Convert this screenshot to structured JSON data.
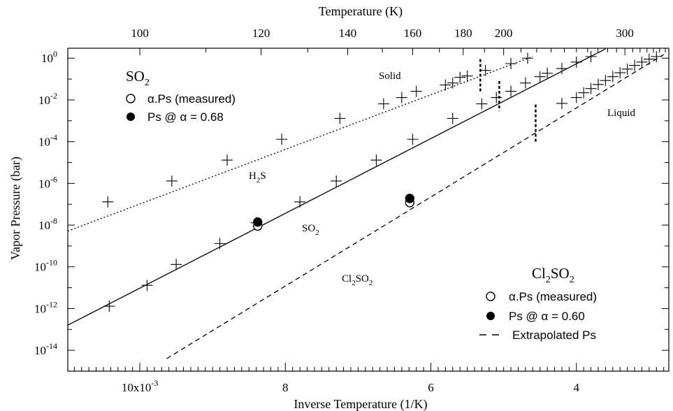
{
  "chart_data": {
    "type": "line",
    "xlabel": "Inverse Temperature  (1/K)",
    "ylabel": "Vapor Pressure (bar)",
    "top_axis_label": "Temperature  (K)",
    "x_scale": "linear",
    "x_direction": "decreasing",
    "xlim": [
      0.01099,
      0.00273
    ],
    "y_scale": "log",
    "ylim": [
      1e-15,
      3
    ],
    "x_tick_labels": [
      {
        "value": 0.01,
        "label": "10x10",
        "sup": "-3"
      },
      {
        "value": 0.008,
        "label": "8"
      },
      {
        "value": 0.006,
        "label": "6"
      },
      {
        "value": 0.004,
        "label": "4"
      }
    ],
    "y_tick_labels": [
      {
        "value": 1,
        "base": "10",
        "exp": "0"
      },
      {
        "value": 0.01,
        "base": "10",
        "exp": "-2"
      },
      {
        "value": 0.0001,
        "base": "10",
        "exp": "-4"
      },
      {
        "value": 1e-06,
        "base": "10",
        "exp": "-6"
      },
      {
        "value": 1e-08,
        "base": "10",
        "exp": "-8"
      },
      {
        "value": 1e-10,
        "base": "10",
        "exp": "-10"
      },
      {
        "value": 1e-12,
        "base": "10",
        "exp": "-12"
      },
      {
        "value": 1e-14,
        "base": "10",
        "exp": "-14"
      }
    ],
    "top_tick_labels": [
      {
        "value": 100,
        "label": "100"
      },
      {
        "value": 120,
        "label": "120"
      },
      {
        "value": 140,
        "label": "140"
      },
      {
        "value": 160,
        "label": "160"
      },
      {
        "value": 180,
        "label": "180"
      },
      {
        "value": 200,
        "label": "200"
      },
      {
        "value": 300,
        "label": "300"
      }
    ],
    "series": [
      {
        "name": "H2S",
        "style": "dotted",
        "line": {
          "x": [
            0.01099,
            0.0046
          ],
          "y": [
            5.2e-09,
            1.2
          ]
        },
        "markers": {
          "x": [
            0.01044,
            0.00956,
            0.0088,
            0.00805,
            0.00725,
            0.00665,
            0.0064,
            0.0062,
            0.0058,
            0.0057,
            0.0056,
            0.0055,
            0.00525,
            0.0049,
            0.00467
          ],
          "y": [
            1.3e-07,
            1.3e-06,
            1.3e-05,
            0.00013,
            0.0013,
            0.0065,
            0.013,
            0.026,
            0.052,
            0.065,
            0.12,
            0.14,
            0.26,
            0.55,
            1.0
          ]
        }
      },
      {
        "name": "SO2",
        "style": "solid",
        "line": {
          "x": [
            0.01099,
            0.0036
          ],
          "y": [
            1.6e-13,
            2.8
          ]
        },
        "markers": {
          "x": [
            0.01042,
            0.0099,
            0.0095,
            0.0089,
            0.0084,
            0.0078,
            0.0073,
            0.00675,
            0.00625,
            0.0057,
            0.0053,
            0.0051,
            0.0049,
            0.0047,
            0.0045,
            0.0044,
            0.0042,
            0.004,
            0.0038
          ],
          "y": [
            1.3e-12,
            1.3e-11,
            1.3e-10,
            1.3e-09,
            1.3e-08,
            1.3e-07,
            1.3e-06,
            1.3e-05,
            0.00013,
            0.0013,
            0.0065,
            0.013,
            0.026,
            0.065,
            0.13,
            0.19,
            0.32,
            0.65,
            1.2
          ]
        }
      },
      {
        "name": "Cl2SO2",
        "style": "dashed",
        "line": {
          "x": [
            0.00963,
            0.0028
          ],
          "y": [
            4e-15,
            1.5
          ]
        },
        "markers": {
          "x": [
            0.0042,
            0.004,
            0.0039,
            0.0038,
            0.0037,
            0.0036,
            0.0035,
            0.0034,
            0.0033,
            0.0032,
            0.0031,
            0.003,
            0.0029
          ],
          "y": [
            0.0068,
            0.013,
            0.022,
            0.035,
            0.055,
            0.085,
            0.13,
            0.2,
            0.3,
            0.45,
            0.65,
            0.9,
            1.2
          ]
        }
      }
    ],
    "measured_points": [
      {
        "group": "SO2",
        "kind": "open",
        "x": 0.00838,
        "y": 9e-09
      },
      {
        "group": "SO2",
        "kind": "filled",
        "x": 0.00838,
        "y": 1.4e-08
      },
      {
        "group": "Cl2SO2",
        "kind": "open",
        "x": 0.00629,
        "y": 1.2e-07
      },
      {
        "group": "Cl2SO2",
        "kind": "filled",
        "x": 0.00629,
        "y": 1.9e-07
      }
    ],
    "transition_marks": [
      {
        "x": 0.00532,
        "y_low": 0.025,
        "y_high": 0.9
      },
      {
        "x": 0.00506,
        "y_low": 0.003,
        "y_high": 0.08
      },
      {
        "x": 0.00456,
        "y_low": 8e-05,
        "y_high": 0.006
      }
    ],
    "annotations": {
      "solid": "Solid",
      "liquid": "Liquid",
      "h2s": {
        "main": "H",
        "sub": "2",
        "tail": "S"
      },
      "so2": {
        "main": "SO",
        "sub": "2"
      },
      "cl2so2": {
        "a": "Cl",
        "sub1": "2",
        "b": "SO",
        "sub2": "2"
      }
    },
    "legend_so2": {
      "title": {
        "main": "SO",
        "sub": "2"
      },
      "entries": [
        {
          "symbol": "open-circle",
          "text": "α.Ps  (measured)"
        },
        {
          "symbol": "filled-circle",
          "text": "Ps @  α = 0.68"
        }
      ]
    },
    "legend_cl2so2": {
      "title": {
        "a": "Cl",
        "sub1": "2",
        "b": "SO",
        "sub2": "2"
      },
      "entries": [
        {
          "symbol": "open-circle",
          "text": "α.Ps  (measured)"
        },
        {
          "symbol": "filled-circle",
          "text": "Ps @  α = 0.60"
        },
        {
          "symbol": "dashed-line",
          "text": "Extrapolated Ps"
        }
      ]
    }
  }
}
